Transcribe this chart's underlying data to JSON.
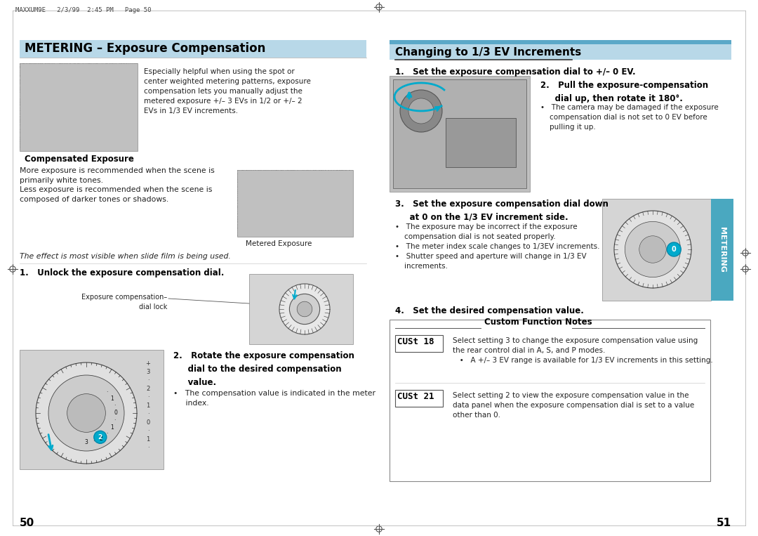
{
  "bg_color": "#ffffff",
  "header_text": "MAXXUM9E   2/3/99  2:45 PM   Page 50",
  "left_title": "METERING – Exposure Compensation",
  "left_title_bg": "#b8d8e8",
  "right_title": "Changing to 1/3 EV Increments",
  "right_bar_color": "#5ba8c8",
  "right_bar2_color": "#b8d8e8",
  "left_subtitle": "Compensated Exposure",
  "metered_label": "Metered Exposure",
  "italic_note": "The effect is most visible when slide film is being used.",
  "intro_text": "Especially helpful when using the spot or\ncenter weighted metering patterns, exposure\ncompensation lets you manually adjust the\nmetered exposure +/– 3 EVs in 1/2 or +/– 2\nEVs in 1/3 EV increments.",
  "step1_left_title": "1.   Unlock the exposure compensation dial.",
  "exp_comp_label": "Exposure compensation–\ndial lock",
  "step2_left_title": "2.   Rotate the exposure compensation\n     dial to the desired compensation\n     value.",
  "step2_bullet": "•   The compensation value is indicated in the meter\n     index.",
  "body_left_1": "More exposure is recommended when the scene is\nprimarily white tones.",
  "body_left_2": "Less exposure is recommended when the scene is\ncomposed of darker tones or shadows.",
  "step1_right": "1.   Set the exposure compensation dial to +/– 0 EV.",
  "step2_right_title": "2.   Pull the exposure-compensation\n     dial up, then rotate it 180°.",
  "step2_right_bullet": "•   The camera may be damaged if the exposure\n    compensation dial is not set to 0 EV before\n    pulling it up.",
  "step3_right_title": "3.   Set the exposure compensation dial down\n     at 0 on the 1/3 EV increment side.",
  "step3_bullets": "•   The exposure may be incorrect if the exposure\n    compensation dial is not seated properly.\n•   The meter index scale changes to 1/3EV increments.\n•   Shutter speed and aperture will change in 1/3 EV\n    increments.",
  "step4_right": "4.   Set the desired compensation value.",
  "custom_title": "Custom Function Notes",
  "cust18_label": "CUSt 18",
  "cust18_text": "Select setting 3 to change the exposure compensation value using\nthe rear control dial in A, S, and P modes.\n   •   A +/– 3 EV range is available for 1/3 EV increments in this setting.",
  "cust21_label": "CUSt 21",
  "cust21_text": "Select setting 2 to view the exposure compensation value in the\ndata panel when the exposure compensation dial is set to a value\nother than 0.",
  "page_left": "50",
  "page_right": "51",
  "metering_tab_color": "#4aa8c0",
  "metering_tab_text": "METERING",
  "text_color": "#222222",
  "bold_color": "#000000",
  "crosshair_color": "#555555",
  "cyan_color": "#00aacc"
}
